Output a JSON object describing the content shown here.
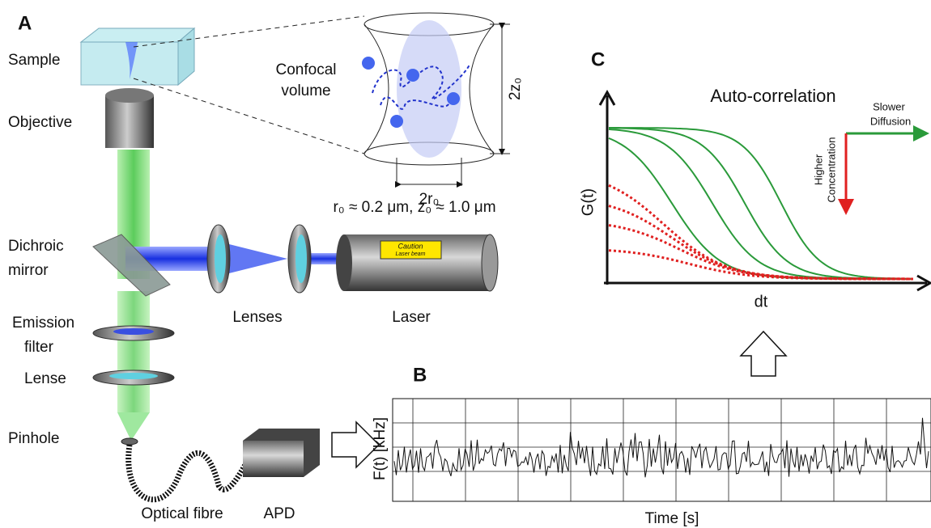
{
  "panel_a": {
    "label": "A",
    "sample": "Sample",
    "objective": "Objective",
    "dichroic": [
      "Dichroic",
      "mirror"
    ],
    "emission_filter": [
      "Emission",
      "filter"
    ],
    "lense": "Lense",
    "pinhole": "Pinhole",
    "optical_fibre": "Optical fibre",
    "apd": "APD",
    "lenses": "Lenses",
    "laser": "Laser",
    "caution": [
      "Caution",
      "Laser beam"
    ],
    "confocal_volume": [
      "Confocal",
      "volume"
    ],
    "height_label": "2z₀",
    "width_label": "2r₀",
    "dimensions": "r₀ ≈ 0.2 μm, z₀ ≈ 1.0 μm"
  },
  "panel_b": {
    "label": "B",
    "y_label": "F(t) [kHz]",
    "x_label": "Time [s]"
  },
  "panel_c": {
    "label": "C",
    "title": "Auto-correlation",
    "y_label": "G(t)",
    "x_label": "dt",
    "slower_diffusion": [
      "Slower",
      "Diffusion"
    ],
    "higher_concentration": [
      "Higher",
      "Concentration"
    ]
  }
}
